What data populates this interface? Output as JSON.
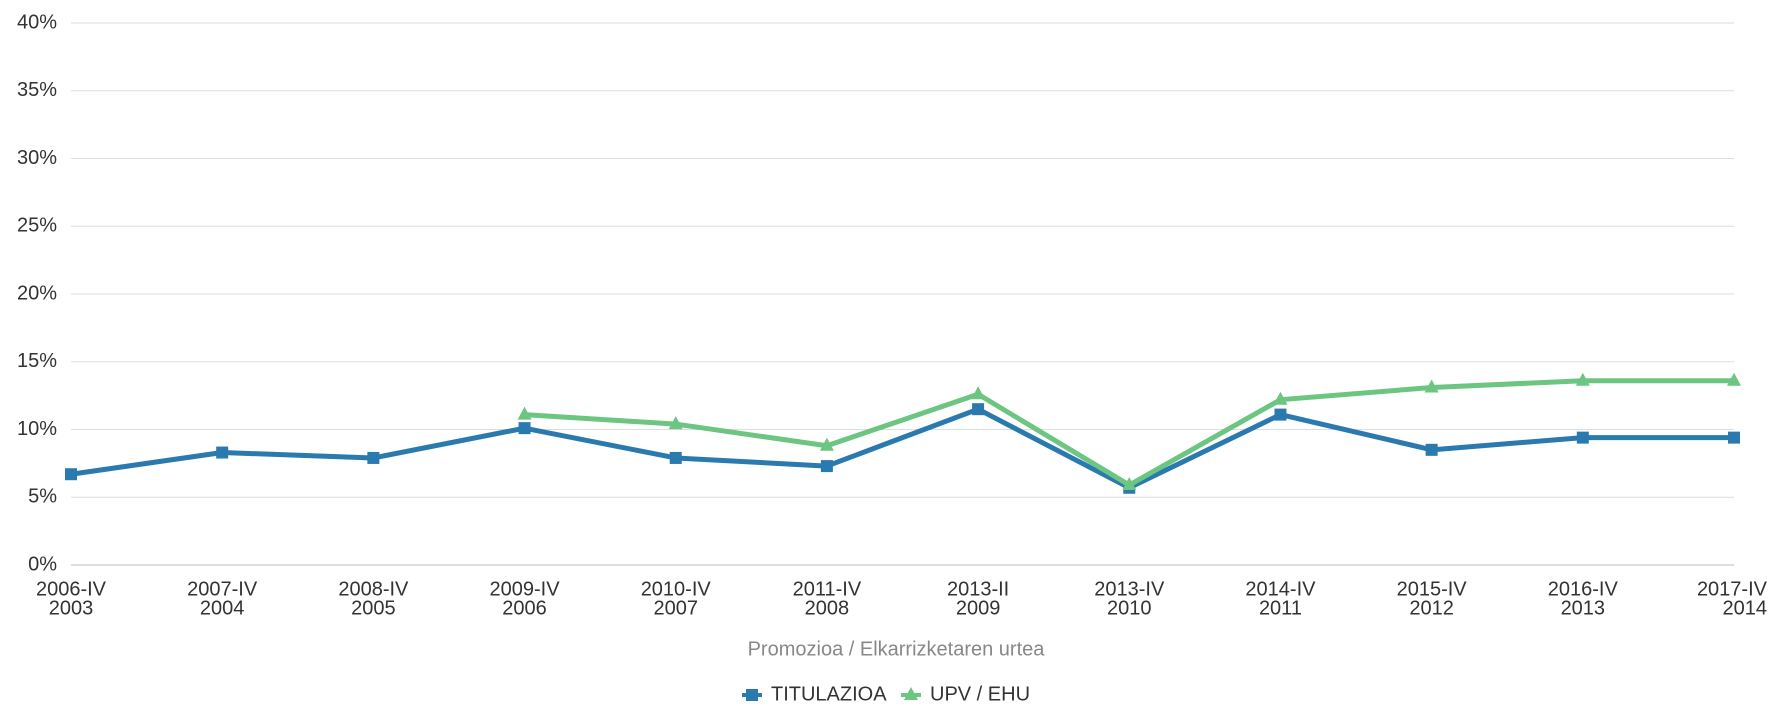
{
  "chart_data": {
    "type": "line",
    "xlabel": "Promozioa / Elkarrizketaren urtea",
    "categories": [
      [
        "2006-IV",
        "2003"
      ],
      [
        "2007-IV",
        "2004"
      ],
      [
        "2008-IV",
        "2005"
      ],
      [
        "2009-IV",
        "2006"
      ],
      [
        "2010-IV",
        "2007"
      ],
      [
        "2011-IV",
        "2008"
      ],
      [
        "2013-II",
        "2009"
      ],
      [
        "2013-IV",
        "2010"
      ],
      [
        "2014-IV",
        "2011"
      ],
      [
        "2015-IV",
        "2012"
      ],
      [
        "2016-IV",
        "2013"
      ],
      [
        "2017-IV",
        "2014"
      ]
    ],
    "series": [
      {
        "name": "TITULAZIOA",
        "color": "#2a7ab0",
        "marker": "square",
        "values": [
          6.7,
          8.3,
          7.9,
          10.1,
          7.9,
          7.3,
          11.5,
          5.7,
          11.1,
          8.5,
          9.4,
          9.4
        ]
      },
      {
        "name": "UPV / EHU",
        "color": "#6cc581",
        "marker": "triangle",
        "values": [
          null,
          null,
          null,
          11.1,
          10.4,
          8.8,
          12.6,
          5.9,
          12.2,
          13.1,
          13.6,
          13.6
        ]
      }
    ],
    "ylim": [
      0,
      40
    ],
    "yticks": [
      {
        "value": 0,
        "label": "0%"
      },
      {
        "value": 5,
        "label": "5%"
      },
      {
        "value": 10,
        "label": "10%"
      },
      {
        "value": 15,
        "label": "15%"
      },
      {
        "value": 20,
        "label": "20%"
      },
      {
        "value": 25,
        "label": "25%"
      },
      {
        "value": 30,
        "label": "30%"
      },
      {
        "value": 35,
        "label": "35%"
      },
      {
        "value": 40,
        "label": "40%"
      }
    ],
    "grid": true,
    "legend": "bottom"
  }
}
